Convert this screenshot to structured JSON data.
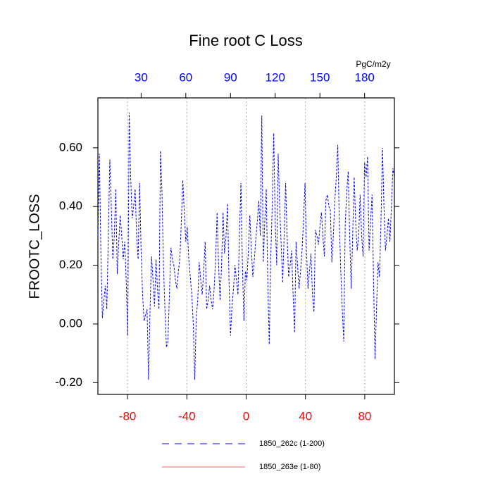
{
  "chart_data": {
    "type": "line",
    "title": "Fine root C Loss",
    "ylabel": "FROOTC_LOSS",
    "units": "PgC/m2y",
    "ylim": [
      -0.24,
      0.77
    ],
    "yticks": [
      {
        "value": -0.2,
        "label": "-0.20"
      },
      {
        "value": 0,
        "label": "0.00"
      },
      {
        "value": 0.2,
        "label": "0.20"
      },
      {
        "value": 0.4,
        "label": "0.40"
      },
      {
        "value": 0.6,
        "label": "0.60"
      }
    ],
    "xlim": [
      -100,
      100
    ],
    "xticks": [
      -80,
      -40,
      0,
      40,
      80
    ],
    "xtick_color": "#ff0000",
    "x2lim": [
      1,
      200
    ],
    "x2ticks": [
      30,
      60,
      90,
      120,
      150,
      180
    ],
    "x2tick_color": "#0000ff",
    "grid": true,
    "series": [
      {
        "name": "1850_262c (1-200)",
        "color": "#0000ff",
        "dashed": true,
        "axis": "x2",
        "values": [
          0.3,
          0.58,
          0.25,
          0.02,
          0.08,
          0.13,
          0.05,
          0.3,
          0.56,
          0.4,
          0.22,
          0.3,
          0.46,
          0.17,
          0.28,
          0.37,
          0.3,
          0.22,
          0.28,
          0.15,
          -0.04,
          0.72,
          0.5,
          0.36,
          0.4,
          0.46,
          0.3,
          0.22,
          0.48,
          0.25,
          0.1,
          0.01,
          0.03,
          0.05,
          -0.19,
          0.05,
          0.23,
          0.15,
          0.06,
          0.22,
          0.12,
          0.05,
          0.59,
          0.45,
          0.2,
          0.05,
          -0.08,
          -0.06,
          0.1,
          0.26,
          0.22,
          0.2,
          0.15,
          0.12,
          0.18,
          0.22,
          0.35,
          0.49,
          0.38,
          0.28,
          0.33,
          0.22,
          0.16,
          0.1,
          0.0,
          -0.19,
          0.02,
          0.08,
          0.21,
          0.15,
          0.1,
          0.18,
          0.28,
          0.05,
          0.08,
          0.13,
          0.08,
          0.05,
          0.12,
          0.22,
          0.38,
          0.2,
          0.08,
          0.2,
          0.38,
          0.24,
          0.3,
          0.41,
          0.15,
          -0.04,
          0.06,
          0.12,
          0.2,
          0.15,
          0.1,
          0.3,
          0.48,
          0.2,
          0.01,
          0.18,
          0.15,
          0.25,
          0.37,
          0.25,
          0.16,
          0.22,
          0.29,
          0.35,
          0.42,
          0.3,
          0.71,
          0.21,
          0.35,
          0.46,
          0.15,
          -0.07,
          0.23,
          0.4,
          0.65,
          0.35,
          0.2,
          0.58,
          0.4,
          0.27,
          0.14,
          0.3,
          0.48,
          0.3,
          0.16,
          0.2,
          0.25,
          0.1,
          -0.03,
          0.28,
          0.2,
          0.12,
          0.18,
          0.25,
          0.35,
          0.48,
          0.25,
          0.12,
          0.18,
          0.24,
          0.1,
          0.04,
          0.32,
          0.3,
          0.27,
          0.33,
          0.38,
          0.3,
          0.23,
          0.42,
          0.44,
          0.4,
          0.39,
          0.21,
          0.3,
          0.42,
          0.5,
          0.61,
          0.35,
          0.18,
          0.05,
          -0.06,
          0.34,
          0.45,
          0.52,
          0.3,
          0.12,
          0.3,
          0.5,
          0.35,
          0.25,
          0.3,
          0.44,
          0.3,
          0.23,
          0.55,
          0.5,
          0.57,
          0.25,
          0.35,
          0.44,
          0.15,
          -0.12,
          0.05,
          0.21,
          0.16,
          0.35,
          0.6,
          0.4,
          0.25,
          0.3,
          0.36,
          0.28,
          0.4,
          0.53,
          0.5
        ]
      },
      {
        "name": "1850_263e (1-80)",
        "color": "#ff6060",
        "dashed": false,
        "values": []
      }
    ]
  }
}
